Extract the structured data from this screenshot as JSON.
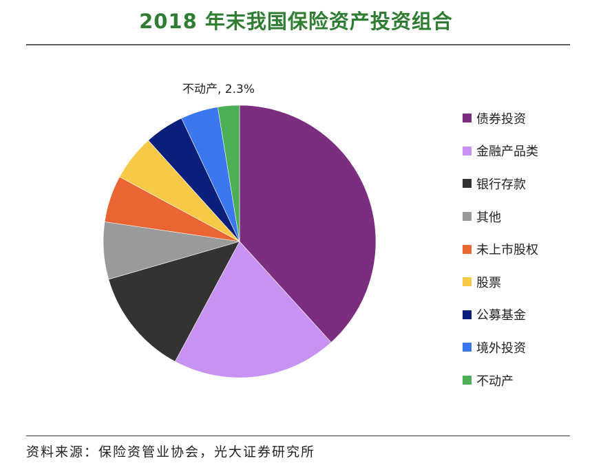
{
  "title": "2018 年末我国保险资产投资组合",
  "source": "资料来源：保险资管业协会，光大证券研究所",
  "chart_data": {
    "type": "pie",
    "title": "2018 年末我国保险资产投资组合",
    "slices": [
      {
        "label": "债券投资",
        "value": 34.4,
        "color": "#7b2d80"
      },
      {
        "label": "金融产品类",
        "value": 17.6,
        "color": "#c892f2"
      },
      {
        "label": "银行存款",
        "value": 11.4,
        "color": "#333333"
      },
      {
        "label": "其他",
        "value": 6.1,
        "color": "#9a9a9a"
      },
      {
        "label": "未上市股权",
        "value": 5.0,
        "color": "#ea6534"
      },
      {
        "label": "股票",
        "value": 4.9,
        "color": "#f6c946"
      },
      {
        "label": "公募基金",
        "value": 4.2,
        "color": "#0b1f7a"
      },
      {
        "label": "境外投资",
        "value": 4.0,
        "color": "#3b78f0"
      },
      {
        "label": "不动产",
        "value": 2.3,
        "color": "#4cae55"
      }
    ],
    "annotations": [
      {
        "slice": "不动产",
        "text": "不动产, 2.3%"
      }
    ],
    "legend_position": "right"
  }
}
